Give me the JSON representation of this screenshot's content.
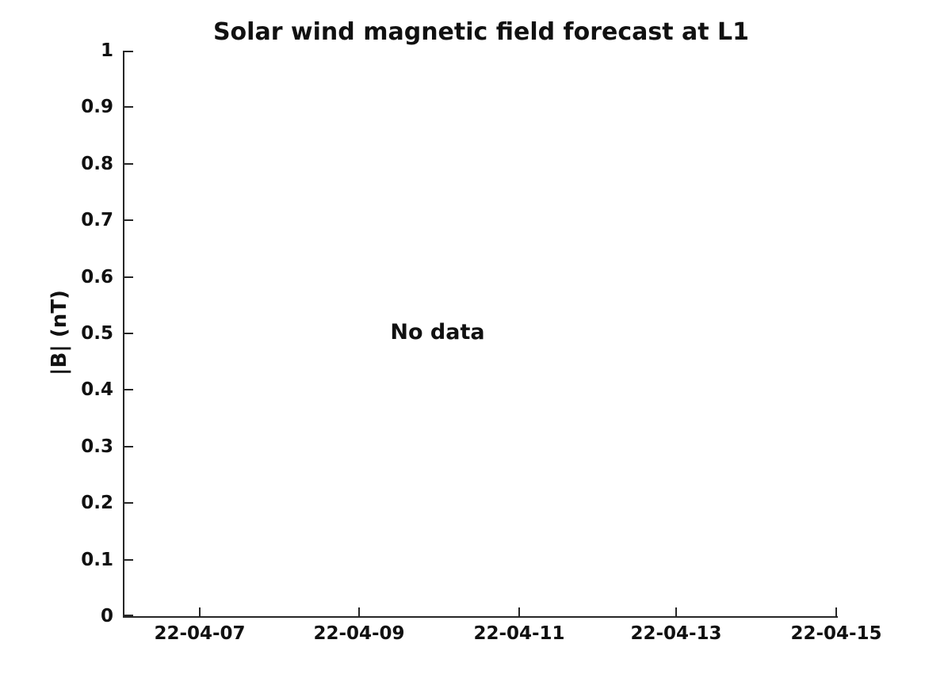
{
  "chart": {
    "title": "Solar wind magnetic field forecast at L1",
    "ylabel": "|B| (nT)",
    "no_data_label": "No data",
    "y_ticks": [
      "1",
      "0.9",
      "0.8",
      "0.7",
      "0.6",
      "0.5",
      "0.4",
      "0.3",
      "0.2",
      "0.1",
      "0"
    ],
    "x_ticks": [
      "22-04-07",
      "22-04-09",
      "22-04-11",
      "22-04-13",
      "22-04-15"
    ],
    "colors": {
      "axis": "#262626",
      "text": "#111111",
      "background": "#ffffff"
    }
  },
  "chart_data": {
    "type": "line",
    "title": "Solar wind magnetic field forecast at L1",
    "xlabel": "",
    "ylabel": "|B| (nT)",
    "x_tick_labels": [
      "22-04-07",
      "22-04-09",
      "22-04-11",
      "22-04-13",
      "22-04-15"
    ],
    "y_tick_labels": [
      1,
      0.9,
      0.8,
      0.7,
      0.6,
      0.5,
      0.4,
      0.3,
      0.2,
      0.1,
      0
    ],
    "ylim": [
      0,
      1
    ],
    "series": [],
    "annotations": [
      {
        "text": "No data",
        "x": "22-04-10",
        "y": 0.5
      }
    ],
    "grid": false,
    "legend": false,
    "spines": [
      "left",
      "bottom"
    ],
    "tick_direction": "in"
  }
}
